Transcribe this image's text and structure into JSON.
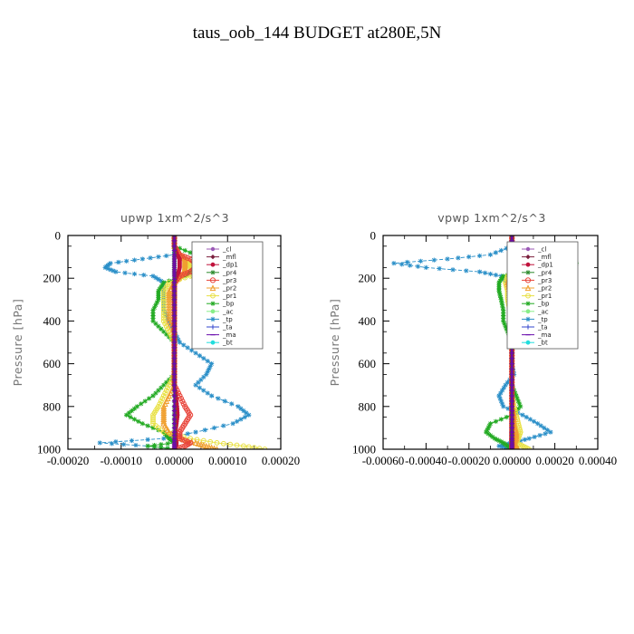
{
  "page_title": "taus_oob_144  BUDGET at280E,5N",
  "legend_entries": [
    "_cl",
    "_mfl",
    "_dp1",
    "_pr4",
    "_pr3",
    "_pr2",
    "_pr1",
    "_bp",
    "_ac",
    "_tp",
    "_ta",
    "_ma",
    "_bt"
  ],
  "colors": {
    "_cl": "#9b59b6",
    "_mfl": "#7a1f3d",
    "_dp1": "#c0133c",
    "_pr4": "#2e8b2e",
    "_pr3": "#e8443a",
    "_pr2": "#f0a030",
    "_pr1": "#e8e040",
    "_bp": "#22aa22",
    "_ac": "#88ee88",
    "_tp": "#2a8fc8",
    "_ta": "#3344cc",
    "_ma": "#6a0dad",
    "_bt": "#22dddd"
  },
  "chart_data": [
    {
      "type": "line",
      "title": "upwp   1xm^2/s^3",
      "ylabel": "Pressure [hPa]",
      "xlim": [
        -0.0002,
        0.0002
      ],
      "ylim": [
        1000,
        0
      ],
      "xticks": [
        "-0.00020",
        "-0.00010",
        "0.00000",
        "0.00010",
        "0.00020"
      ],
      "xtick_values": [
        -0.0002,
        -0.0001,
        0,
        0.0001,
        0.0002
      ],
      "yticks": [
        "0",
        "200",
        "400",
        "600",
        "800",
        "1000"
      ],
      "ytick_values": [
        0,
        200,
        400,
        600,
        800,
        1000
      ],
      "legend_position": "upper-right",
      "pressure": [
        0,
        50,
        90,
        110,
        130,
        150,
        170,
        190,
        220,
        260,
        300,
        350,
        400,
        450,
        500,
        550,
        600,
        650,
        700,
        750,
        800,
        840,
        880,
        920,
        950,
        970,
        985,
        1000
      ],
      "series": [
        {
          "name": "_tp",
          "values": [
            0,
            0,
            0,
            -6e-05,
            -0.00012,
            -0.00013,
            -0.00011,
            -4e-05,
            -2e-05,
            -2e-05,
            -2e-05,
            -2e-05,
            -1e-05,
            0,
            1e-05,
            4e-05,
            7e-05,
            6e-05,
            4e-05,
            7e-05,
            0.00012,
            0.00014,
            0.00011,
            4e-05,
            -2e-05,
            -0.00014,
            -5e-05,
            0
          ]
        },
        {
          "name": "_bp",
          "values": [
            0,
            0,
            4e-05,
            5e-05,
            6e-05,
            4e-05,
            3e-05,
            2e-05,
            -2e-05,
            -3e-05,
            -3e-05,
            -4e-05,
            -4e-05,
            -2e-05,
            0,
            0,
            0,
            0,
            -2e-05,
            -4e-05,
            -7e-05,
            -9e-05,
            -6e-05,
            -2e-05,
            -1e-05,
            0,
            -5e-05,
            0
          ]
        },
        {
          "name": "_pr1",
          "values": [
            0,
            0,
            1e-05,
            2e-05,
            3e-05,
            3e-05,
            4e-05,
            3e-05,
            -1e-05,
            -2e-05,
            -2e-05,
            -2e-05,
            -2e-05,
            -1e-05,
            0,
            0,
            0,
            0,
            -1e-05,
            -2e-05,
            -3e-05,
            -4e-05,
            -4e-05,
            -2e-05,
            3e-05,
            8e-05,
            0.00013,
            0.00017
          ]
        },
        {
          "name": "_pr2",
          "values": [
            0,
            0,
            1e-05,
            2e-05,
            2e-05,
            2e-05,
            2e-05,
            1e-05,
            0,
            -1e-05,
            -1e-05,
            -1e-05,
            -1e-05,
            0,
            0,
            0,
            0,
            0,
            0,
            -1e-05,
            -2e-05,
            -2e-05,
            -2e-05,
            -1e-05,
            1e-05,
            4e-05,
            6e-05,
            8e-05
          ]
        },
        {
          "name": "_pr3",
          "values": [
            0,
            0,
            1e-05,
            3e-05,
            4e-05,
            4e-05,
            3e-05,
            1e-05,
            0,
            0,
            0,
            0,
            0,
            0,
            0,
            0,
            0,
            0,
            0,
            1e-05,
            2e-05,
            3e-05,
            2e-05,
            1e-05,
            1e-05,
            3e-05,
            2e-05,
            0
          ]
        },
        {
          "name": "_dp1",
          "values": [
            0,
            0,
            5e-06,
            1e-05,
            1e-05,
            1e-05,
            8e-06,
            4e-06,
            0,
            0,
            0,
            0,
            0,
            0,
            0,
            0,
            0,
            0,
            0,
            3e-06,
            5e-06,
            6e-06,
            4e-06,
            2e-06,
            2e-06,
            4e-06,
            3e-06,
            0
          ]
        },
        {
          "name": "_pr4",
          "values": [
            0,
            0,
            0,
            0,
            0,
            0,
            0,
            0,
            0,
            0,
            0,
            0,
            0,
            0,
            0,
            0,
            0,
            0,
            0,
            0,
            0,
            0,
            0,
            0,
            0,
            0,
            0,
            0
          ]
        },
        {
          "name": "_mfl",
          "values": [
            0,
            0,
            0,
            0,
            0,
            0,
            0,
            0,
            0,
            0,
            0,
            0,
            0,
            0,
            0,
            0,
            0,
            0,
            0,
            0,
            0,
            0,
            0,
            0,
            0,
            0,
            0,
            0
          ]
        },
        {
          "name": "_ma",
          "values": [
            0,
            0,
            0,
            0,
            0,
            0,
            0,
            0,
            0,
            0,
            0,
            0,
            0,
            0,
            0,
            0,
            0,
            0,
            0,
            0,
            0,
            0,
            0,
            0,
            0,
            0,
            0,
            0
          ]
        }
      ]
    },
    {
      "type": "line",
      "title": "vpwp   1xm^2/s^3",
      "ylabel": "Pressure [hPa]",
      "xlim": [
        -0.0006,
        0.0004
      ],
      "ylim": [
        1000,
        0
      ],
      "xticks": [
        "-0.00060",
        "-0.00040",
        "-0.00020",
        "0.00000",
        "0.00020",
        "0.00040"
      ],
      "xtick_values": [
        -0.0006,
        -0.0004,
        -0.0002,
        0,
        0.0002,
        0.0004
      ],
      "yticks": [
        "0",
        "200",
        "400",
        "600",
        "800",
        "1000"
      ],
      "ytick_values": [
        0,
        200,
        400,
        600,
        800,
        1000
      ],
      "legend_position": "upper-right",
      "pressure": [
        0,
        50,
        90,
        110,
        130,
        150,
        170,
        190,
        220,
        260,
        300,
        350,
        400,
        450,
        500,
        550,
        600,
        650,
        700,
        750,
        800,
        840,
        880,
        920,
        950,
        970,
        985,
        1000
      ],
      "series": [
        {
          "name": "_tp",
          "values": [
            0,
            0,
            -0.0001,
            -0.0003,
            -0.00055,
            -0.0004,
            -0.00015,
            -5e-05,
            -2e-05,
            -1e-05,
            0,
            0,
            0,
            0,
            0,
            0,
            0,
            1e-05,
            -3e-05,
            -6e-05,
            -4e-05,
            5e-05,
            0.00012,
            0.00018,
            8e-05,
            0,
            -6e-05,
            0
          ]
        },
        {
          "name": "_bp",
          "values": [
            0,
            0,
            5e-05,
            0.00012,
            0.0003,
            0.00015,
            4e-05,
            -4e-05,
            -6e-05,
            -6e-05,
            -5e-05,
            -4e-05,
            -4e-05,
            -2e-05,
            0,
            0,
            0,
            0,
            0,
            2e-05,
            4e-05,
            0,
            -0.0001,
            -0.00012,
            -8e-05,
            -4e-05,
            -2e-05,
            0
          ]
        },
        {
          "name": "_pr1",
          "values": [
            0,
            0,
            2e-05,
            4e-05,
            6e-05,
            4e-05,
            2e-05,
            -2e-05,
            -3e-05,
            -2e-05,
            -2e-05,
            -1e-05,
            -1e-05,
            0,
            0,
            0,
            0,
            0,
            0,
            0,
            1e-05,
            2e-05,
            3e-05,
            4e-05,
            3e-05,
            2e-05,
            5e-05,
            8e-05
          ]
        },
        {
          "name": "_pr2",
          "values": [
            0,
            0,
            1e-05,
            2e-05,
            3e-05,
            2e-05,
            1e-05,
            -1e-05,
            -2e-05,
            -1e-05,
            -1e-05,
            0,
            0,
            0,
            0,
            0,
            0,
            0,
            0,
            0,
            0,
            1e-05,
            1e-05,
            2e-05,
            2e-05,
            1e-05,
            2e-05,
            3e-05
          ]
        },
        {
          "name": "_pr3",
          "values": [
            0,
            0,
            1e-05,
            3e-05,
            4e-05,
            3e-05,
            2e-05,
            0,
            0,
            0,
            0,
            0,
            0,
            0,
            0,
            0,
            0,
            0,
            0,
            0,
            0,
            0,
            0,
            0,
            0,
            0,
            0,
            0
          ]
        },
        {
          "name": "_dp1",
          "values": [
            0,
            0,
            5e-06,
            1e-05,
            1.5e-05,
            1e-05,
            5e-06,
            0,
            0,
            0,
            0,
            0,
            0,
            0,
            0,
            0,
            0,
            0,
            0,
            0,
            0,
            0,
            0,
            0,
            0,
            0,
            0,
            0
          ]
        },
        {
          "name": "_pr4",
          "values": [
            0,
            0,
            0,
            0,
            0,
            0,
            0,
            0,
            0,
            0,
            0,
            0,
            0,
            0,
            0,
            0,
            0,
            0,
            0,
            0,
            0,
            0,
            0,
            0,
            0,
            0,
            0,
            0
          ]
        },
        {
          "name": "_mfl",
          "values": [
            0,
            0,
            0,
            0,
            0,
            0,
            0,
            0,
            0,
            0,
            0,
            0,
            0,
            0,
            0,
            0,
            0,
            0,
            0,
            0,
            0,
            0,
            0,
            0,
            0,
            0,
            0,
            0
          ]
        },
        {
          "name": "_ma",
          "values": [
            0,
            0,
            0,
            0,
            0,
            0,
            0,
            0,
            0,
            0,
            0,
            0,
            0,
            0,
            0,
            0,
            0,
            0,
            0,
            0,
            0,
            0,
            0,
            0,
            0,
            0,
            0,
            0
          ]
        }
      ]
    }
  ]
}
